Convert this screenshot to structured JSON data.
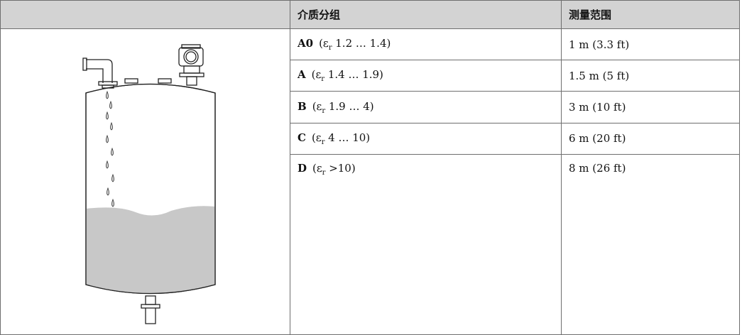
{
  "table": {
    "header": [
      "",
      "介质分组",
      "测量范围"
    ],
    "rows": [
      {
        "group": "A0",
        "before": "(ε",
        "sub": "r",
        "after": " 1.2 … 1.4)",
        "range": "1 m (3.3 ft)"
      },
      {
        "group": "A",
        "before": "(ε",
        "sub": "r",
        "after": " 1.4 … 1.9)",
        "range": "1.5 m (5 ft)"
      },
      {
        "group": "B",
        "before": "(ε",
        "sub": "r",
        "after": " 1.9 … 4)",
        "range": "3 m (10 ft)"
      },
      {
        "group": "C",
        "before": "(ε",
        "sub": "r",
        "after": " 4 … 10)",
        "range": "6 m (20 ft)"
      },
      {
        "group": "D",
        "before": "(ε",
        "sub": "r",
        "after": " >10)",
        "range": "8 m (26 ft)"
      }
    ]
  }
}
